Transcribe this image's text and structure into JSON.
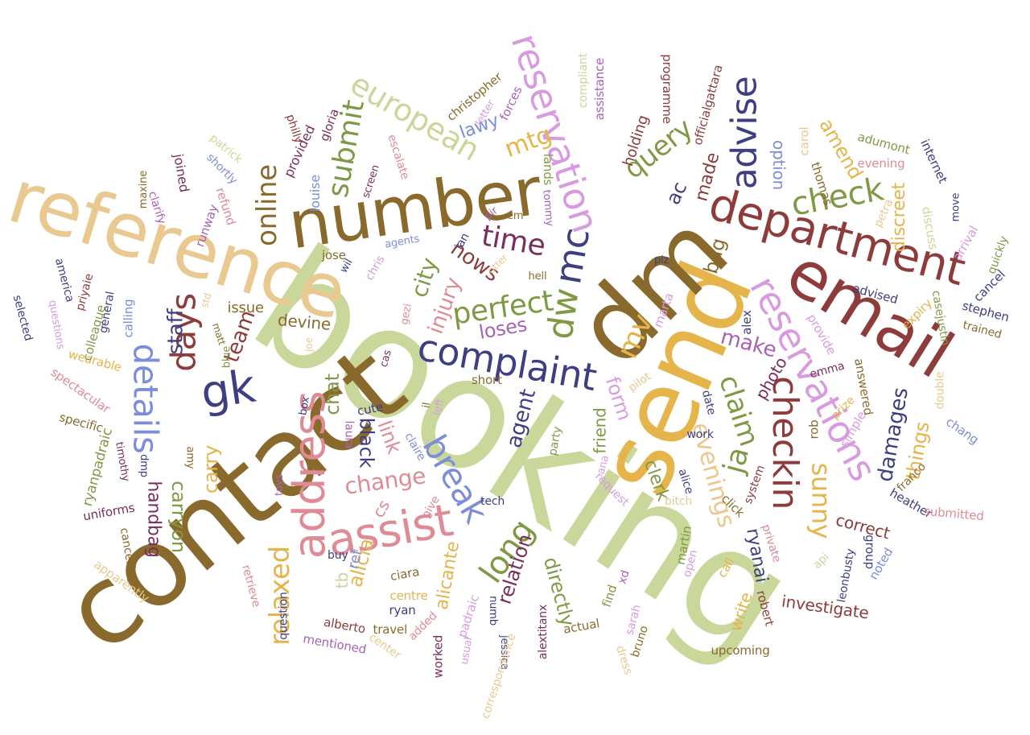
{
  "palette": {
    "brown": "#8a6a2c",
    "sage": "#c9d89a",
    "sand": "#e9c98f",
    "maroon": "#8e3b3b",
    "gold": "#e5b44a",
    "navy": "#3d3f82",
    "lilac": "#d89be0",
    "rose": "#df8b96",
    "olive": "#7f9a45",
    "blue": "#7b8ddb",
    "plum": "#7a2e5c",
    "purple": "#a862b7",
    "pink": "#e56aa8"
  },
  "words": [
    {
      "text": "booking",
      "color": "sage"
    },
    {
      "text": "contact",
      "color": "brown"
    },
    {
      "text": "send",
      "color": "gold"
    },
    {
      "text": "dm",
      "color": "brown"
    },
    {
      "text": "reference",
      "color": "sand"
    },
    {
      "text": "number",
      "color": "brown"
    },
    {
      "text": "email",
      "color": "maroon"
    },
    {
      "text": "department",
      "color": "maroon"
    },
    {
      "text": "address",
      "color": "rose"
    },
    {
      "text": "reservation",
      "color": "lilac"
    },
    {
      "text": "reservations",
      "color": "lilac"
    },
    {
      "text": "assist",
      "color": "rose"
    },
    {
      "text": "gk",
      "color": "navy"
    },
    {
      "text": "complaint",
      "color": "navy"
    },
    {
      "text": "european",
      "color": "sage"
    },
    {
      "text": "advise",
      "color": "navy"
    },
    {
      "text": "checkin",
      "color": "maroon"
    },
    {
      "text": "check",
      "color": "olive"
    },
    {
      "text": "details",
      "color": "blue"
    },
    {
      "text": "days",
      "color": "maroon"
    },
    {
      "text": "mc",
      "color": "navy"
    },
    {
      "text": "dw",
      "color": "olive"
    },
    {
      "text": "break",
      "color": "blue"
    },
    {
      "text": "perfect",
      "color": "olive"
    },
    {
      "text": "submit",
      "color": "olive"
    },
    {
      "text": "online",
      "color": "brown"
    },
    {
      "text": "time",
      "color": "plum"
    },
    {
      "text": "query",
      "color": "olive"
    },
    {
      "text": "evenings",
      "color": "sand"
    },
    {
      "text": "claim",
      "color": "olive"
    },
    {
      "text": "long",
      "color": "olive"
    },
    {
      "text": "relaxed",
      "color": "gold"
    },
    {
      "text": "sunny",
      "color": "gold"
    },
    {
      "text": "damages",
      "color": "navy"
    },
    {
      "text": "mv",
      "color": "gold"
    },
    {
      "text": "ja",
      "color": "olive"
    },
    {
      "text": "mtg",
      "color": "gold"
    },
    {
      "text": "nows",
      "color": "maroon"
    },
    {
      "text": "city",
      "color": "olive"
    },
    {
      "text": "injury",
      "color": "rose"
    },
    {
      "text": "change",
      "color": "rose"
    },
    {
      "text": "staff",
      "color": "navy"
    },
    {
      "text": "team",
      "color": "maroon"
    },
    {
      "text": "carry",
      "color": "gold"
    },
    {
      "text": "carryon",
      "color": "olive"
    },
    {
      "text": "handbag",
      "color": "plum"
    },
    {
      "text": "agent",
      "color": "navy"
    },
    {
      "text": "loses",
      "color": "purple"
    },
    {
      "text": "make",
      "color": "purple"
    },
    {
      "text": "amend",
      "color": "gold"
    },
    {
      "text": "discreet",
      "color": "gold"
    },
    {
      "text": "things",
      "color": "gold"
    },
    {
      "text": "bag",
      "color": "brown"
    },
    {
      "text": "relation",
      "color": "plum"
    },
    {
      "text": "directly",
      "color": "olive"
    },
    {
      "text": "link",
      "color": "rose"
    },
    {
      "text": "black",
      "color": "navy"
    },
    {
      "text": "alicia",
      "color": "gold"
    },
    {
      "text": "alicante",
      "color": "gold"
    },
    {
      "text": "chat",
      "color": "olive"
    },
    {
      "text": "form",
      "color": "lilac"
    },
    {
      "text": "clerk",
      "color": "olive"
    },
    {
      "text": "lawy",
      "color": "blue"
    },
    {
      "text": "ac",
      "color": "navy"
    },
    {
      "text": "made",
      "color": "maroon"
    },
    {
      "text": "holding",
      "color": "maroon"
    },
    {
      "text": "option",
      "color": "blue"
    },
    {
      "text": "ryanai",
      "color": "navy"
    },
    {
      "text": "correct",
      "color": "maroon"
    },
    {
      "text": "investigate",
      "color": "maroon"
    },
    {
      "text": "write",
      "color": "gold"
    },
    {
      "text": "devine",
      "color": "brown"
    },
    {
      "text": "issue",
      "color": "brown"
    },
    {
      "text": "friend",
      "color": "olive"
    },
    {
      "text": "photo",
      "color": "plum"
    },
    {
      "text": "tb",
      "color": "sage"
    },
    {
      "text": "ref",
      "color": "blue"
    },
    {
      "text": "cs",
      "color": "rose"
    },
    {
      "text": "provided",
      "color": "plum"
    },
    {
      "text": "refund",
      "color": "rose"
    },
    {
      "text": "joined",
      "color": "plum"
    },
    {
      "text": "runway",
      "color": "purple"
    },
    {
      "text": "louise",
      "color": "blue"
    },
    {
      "text": "lands",
      "color": "olive"
    },
    {
      "text": "jose",
      "color": "brown"
    },
    {
      "text": "forces",
      "color": "purple"
    },
    {
      "text": "christopher",
      "color": "brown"
    },
    {
      "text": "gloria",
      "color": "plum"
    },
    {
      "text": "philly",
      "color": "maroon"
    },
    {
      "text": "escalate",
      "color": "rose"
    },
    {
      "text": "screen",
      "color": "plum"
    },
    {
      "text": "letter",
      "color": "lilac"
    },
    {
      "text": "compliant",
      "color": "sage"
    },
    {
      "text": "assistance",
      "color": "purple"
    },
    {
      "text": "programme",
      "color": "maroon"
    },
    {
      "text": "officialgattara",
      "color": "maroon"
    },
    {
      "text": "carol",
      "color": "sand"
    },
    {
      "text": "thomas",
      "color": "brown"
    },
    {
      "text": "adumont",
      "color": "olive"
    },
    {
      "text": "evening",
      "color": "rose"
    },
    {
      "text": "internet",
      "color": "navy"
    },
    {
      "text": "move",
      "color": "navy"
    },
    {
      "text": "petra",
      "color": "sand"
    },
    {
      "text": "discuss",
      "color": "sage"
    },
    {
      "text": "arrival",
      "color": "lilac"
    },
    {
      "text": "quickly",
      "color": "olive"
    },
    {
      "text": "cancel",
      "color": "navy"
    },
    {
      "text": "stephen",
      "color": "navy"
    },
    {
      "text": "trained",
      "color": "brown"
    },
    {
      "text": "casejustin",
      "color": "olive"
    },
    {
      "text": "expiry",
      "color": "gold"
    },
    {
      "text": "advised",
      "color": "navy"
    },
    {
      "text": "provide",
      "color": "lilac"
    },
    {
      "text": "answered",
      "color": "brown"
    },
    {
      "text": "prize",
      "color": "gold"
    },
    {
      "text": "emma",
      "color": "plum"
    },
    {
      "text": "double",
      "color": "sand"
    },
    {
      "text": "chang",
      "color": "blue"
    },
    {
      "text": "simple",
      "color": "lilac"
    },
    {
      "text": "rob",
      "color": "brown"
    },
    {
      "text": "franco",
      "color": "brown"
    },
    {
      "text": "heather",
      "color": "navy"
    },
    {
      "text": "submitted",
      "color": "rose"
    },
    {
      "text": "group",
      "color": "navy"
    },
    {
      "text": "noted",
      "color": "blue"
    },
    {
      "text": "leonbusty",
      "color": "navy"
    },
    {
      "text": "api",
      "color": "sage"
    },
    {
      "text": "private",
      "color": "rose"
    },
    {
      "text": "system",
      "color": "maroon"
    },
    {
      "text": "alex",
      "color": "navy"
    },
    {
      "text": "marta",
      "color": "lilac"
    },
    {
      "text": "date",
      "color": "navy"
    },
    {
      "text": "pilot",
      "color": "sand"
    },
    {
      "text": "work",
      "color": "navy"
    },
    {
      "text": "alice",
      "color": "navy"
    },
    {
      "text": "bitch",
      "color": "sand"
    },
    {
      "text": "click",
      "color": "brown"
    },
    {
      "text": "martin",
      "color": "olive"
    },
    {
      "text": "open",
      "color": "lilac"
    },
    {
      "text": "call",
      "color": "gold"
    },
    {
      "text": "robert",
      "color": "maroon"
    },
    {
      "text": "upcoming",
      "color": "brown"
    },
    {
      "text": "request",
      "color": "lilac"
    },
    {
      "text": "ana",
      "color": "lilac"
    },
    {
      "text": "find",
      "color": "olive"
    },
    {
      "text": "xd",
      "color": "purple"
    },
    {
      "text": "sarah",
      "color": "lilac"
    },
    {
      "text": "bruno",
      "color": "brown"
    },
    {
      "text": "dress",
      "color": "sand"
    },
    {
      "text": "actual",
      "color": "brown"
    },
    {
      "text": "alextitanx",
      "color": "plum"
    },
    {
      "text": "tech",
      "color": "navy"
    },
    {
      "text": "party",
      "color": "olive"
    },
    {
      "text": "short",
      "color": "brown"
    },
    {
      "text": "pir",
      "color": "purple"
    },
    {
      "text": "em",
      "color": "brown"
    },
    {
      "text": "tommy",
      "color": "purple"
    },
    {
      "text": "ian",
      "color": "navy"
    },
    {
      "text": "plz",
      "color": "navy"
    },
    {
      "text": "hell",
      "color": "brown"
    },
    {
      "text": "utter",
      "color": "sand"
    },
    {
      "text": "wil",
      "color": "navy"
    },
    {
      "text": "agents",
      "color": "blue"
    },
    {
      "text": "chris",
      "color": "lilac"
    },
    {
      "text": "gezi",
      "color": "rose"
    },
    {
      "text": "cas",
      "color": "plum"
    },
    {
      "text": "cute",
      "color": "navy"
    },
    {
      "text": "il",
      "color": "brown"
    },
    {
      "text": "left",
      "color": "lilac"
    },
    {
      "text": "laura",
      "color": "purple"
    },
    {
      "text": "claire",
      "color": "blue"
    },
    {
      "text": "give",
      "color": "rose"
    },
    {
      "text": "buy",
      "color": "navy"
    },
    {
      "text": "ciara",
      "color": "brown"
    },
    {
      "text": "centre",
      "color": "gold"
    },
    {
      "text": "padraic",
      "color": "lilac"
    },
    {
      "text": "numb",
      "color": "navy"
    },
    {
      "text": "jessica",
      "color": "navy"
    },
    {
      "text": "correspondence",
      "color": "sand"
    },
    {
      "text": "usual",
      "color": "lilac"
    },
    {
      "text": "worked",
      "color": "plum"
    },
    {
      "text": "added",
      "color": "rose"
    },
    {
      "text": "ryan",
      "color": "navy"
    },
    {
      "text": "travel",
      "color": "brown"
    },
    {
      "text": "center",
      "color": "sand"
    },
    {
      "text": "alberto",
      "color": "maroon"
    },
    {
      "text": "mentioned",
      "color": "purple"
    },
    {
      "text": "question",
      "color": "navy"
    },
    {
      "text": "retrieve",
      "color": "rose"
    },
    {
      "text": "cancelling",
      "color": "brown"
    },
    {
      "text": "apparently",
      "color": "sand"
    },
    {
      "text": "uniforms",
      "color": "plum"
    },
    {
      "text": "ryanpadraic",
      "color": "olive"
    },
    {
      "text": "timothy",
      "color": "plum"
    },
    {
      "text": "dmp",
      "color": "navy"
    },
    {
      "text": "amy",
      "color": "brown"
    },
    {
      "text": "toys",
      "color": "purple"
    },
    {
      "text": "matt",
      "color": "brown"
    },
    {
      "text": "blue",
      "color": "olive"
    },
    {
      "text": "std",
      "color": "sand"
    },
    {
      "text": "joe",
      "color": "sand"
    },
    {
      "text": "specific",
      "color": "brown"
    },
    {
      "text": "spectacular",
      "color": "rose"
    },
    {
      "text": "wearable",
      "color": "gold"
    },
    {
      "text": "colleague",
      "color": "olive"
    },
    {
      "text": "general",
      "color": "navy"
    },
    {
      "text": "calling",
      "color": "blue"
    },
    {
      "text": "questions",
      "color": "lilac"
    },
    {
      "text": "selected",
      "color": "navy"
    },
    {
      "text": "america",
      "color": "navy"
    },
    {
      "text": "priyaie",
      "color": "maroon"
    },
    {
      "text": "maxine",
      "color": "brown"
    },
    {
      "text": "clarify",
      "color": "purple"
    },
    {
      "text": "patrick",
      "color": "sage"
    },
    {
      "text": "shortly",
      "color": "blue"
    },
    {
      "text": "box",
      "color": "navy"
    }
  ]
}
